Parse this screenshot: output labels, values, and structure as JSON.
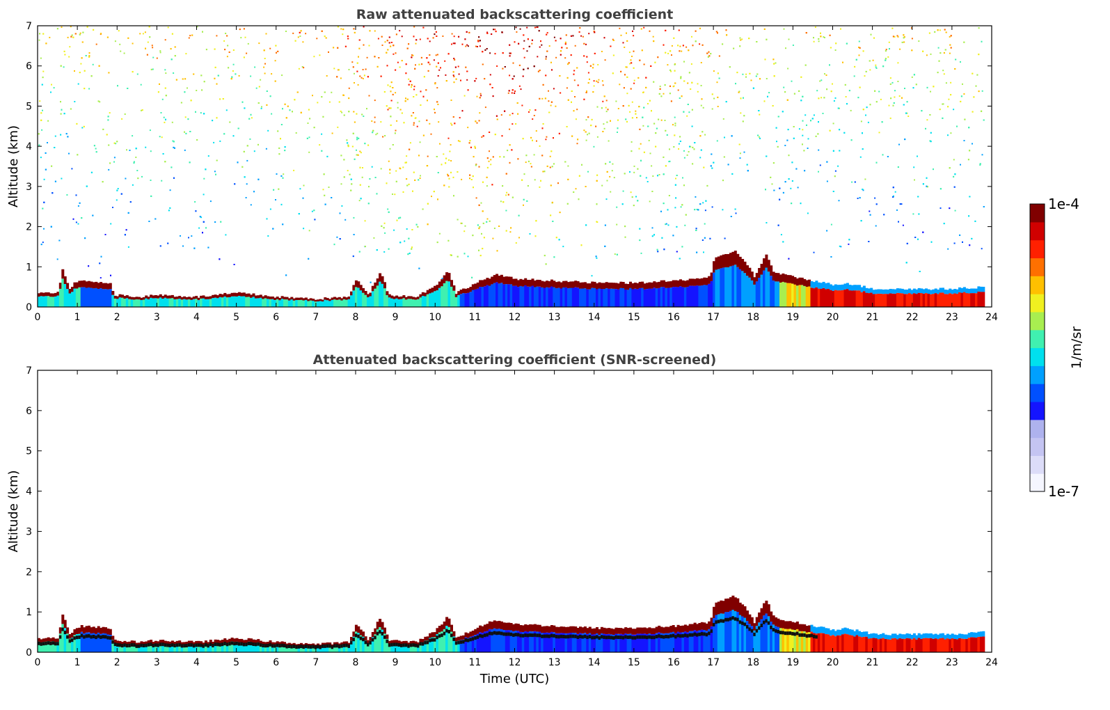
{
  "chart_data": [
    {
      "type": "heatmap",
      "title": "Raw attenuated backscattering coefficient",
      "xlabel": "",
      "ylabel": "Altitude (km)",
      "xlim": [
        0,
        24
      ],
      "ylim": [
        0,
        7
      ],
      "xticks": [
        "0",
        "1",
        "2",
        "3",
        "4",
        "5",
        "6",
        "7",
        "8",
        "9",
        "10",
        "11",
        "12",
        "13",
        "14",
        "15",
        "16",
        "17",
        "18",
        "19",
        "20",
        "21",
        "22",
        "23",
        "24"
      ],
      "yticks": [
        "0",
        "1",
        "2",
        "3",
        "4",
        "5",
        "6",
        "7"
      ],
      "noise": true,
      "layer_top_km": [
        [
          0,
          0.35
        ],
        [
          0.5,
          0.35
        ],
        [
          0.6,
          0.95
        ],
        [
          0.8,
          0.4
        ],
        [
          0.9,
          0.6
        ],
        [
          1.1,
          0.65
        ],
        [
          1.8,
          0.6
        ],
        [
          1.9,
          0.3
        ],
        [
          2.5,
          0.25
        ],
        [
          3,
          0.3
        ],
        [
          4,
          0.25
        ],
        [
          5,
          0.35
        ],
        [
          6,
          0.25
        ],
        [
          7,
          0.2
        ],
        [
          7.8,
          0.25
        ],
        [
          8,
          0.7
        ],
        [
          8.3,
          0.3
        ],
        [
          8.6,
          0.9
        ],
        [
          8.8,
          0.3
        ],
        [
          9.5,
          0.25
        ],
        [
          10,
          0.55
        ],
        [
          10.3,
          0.9
        ],
        [
          10.5,
          0.35
        ],
        [
          11,
          0.6
        ],
        [
          11.5,
          0.8
        ],
        [
          12,
          0.7
        ],
        [
          13,
          0.65
        ],
        [
          14,
          0.6
        ],
        [
          15,
          0.6
        ],
        [
          16,
          0.65
        ],
        [
          16.9,
          0.75
        ],
        [
          17,
          1.2
        ],
        [
          17.5,
          1.4
        ],
        [
          17.8,
          1.1
        ],
        [
          18,
          0.75
        ],
        [
          18.3,
          1.3
        ],
        [
          18.5,
          0.85
        ],
        [
          19,
          0.75
        ],
        [
          19.5,
          0.65
        ],
        [
          20,
          0.55
        ],
        [
          20.3,
          0.6
        ],
        [
          21,
          0.45
        ],
        [
          22,
          0.45
        ],
        [
          23,
          0.45
        ],
        [
          23.8,
          0.5
        ]
      ],
      "colorbar": {
        "label": "1/m/sr",
        "min_label": "1e-7",
        "max_label": "1e-4",
        "colors": [
          "#f5f6ff",
          "#dcdcf8",
          "#c4c4f2",
          "#aeb2ee",
          "#1414ff",
          "#0050ff",
          "#00a0ff",
          "#00e0ee",
          "#40f0b0",
          "#a8ee50",
          "#f0f020",
          "#ffc000",
          "#ff7000",
          "#ff2000",
          "#d00000",
          "#800000"
        ]
      }
    },
    {
      "type": "heatmap",
      "title": "Attenuated backscattering coefficient (SNR-screened)",
      "xlabel": "Time (UTC)",
      "ylabel": "Altitude (km)",
      "xlim": [
        0,
        24
      ],
      "ylim": [
        0,
        7
      ],
      "xticks": [
        "0",
        "1",
        "2",
        "3",
        "4",
        "5",
        "6",
        "7",
        "8",
        "9",
        "10",
        "11",
        "12",
        "13",
        "14",
        "15",
        "16",
        "17",
        "18",
        "19",
        "20",
        "21",
        "22",
        "23",
        "24"
      ],
      "yticks": [
        "0",
        "1",
        "2",
        "3",
        "4",
        "5",
        "6",
        "7"
      ],
      "noise": false,
      "layer_top_km": [
        [
          0,
          0.35
        ],
        [
          0.5,
          0.35
        ],
        [
          0.6,
          0.95
        ],
        [
          0.8,
          0.4
        ],
        [
          0.9,
          0.6
        ],
        [
          1.1,
          0.65
        ],
        [
          1.8,
          0.6
        ],
        [
          1.9,
          0.3
        ],
        [
          2.5,
          0.25
        ],
        [
          3,
          0.3
        ],
        [
          4,
          0.25
        ],
        [
          5,
          0.35
        ],
        [
          6,
          0.25
        ],
        [
          7,
          0.2
        ],
        [
          7.8,
          0.25
        ],
        [
          8,
          0.7
        ],
        [
          8.3,
          0.3
        ],
        [
          8.6,
          0.9
        ],
        [
          8.8,
          0.3
        ],
        [
          9.5,
          0.25
        ],
        [
          10,
          0.55
        ],
        [
          10.3,
          0.9
        ],
        [
          10.5,
          0.35
        ],
        [
          11,
          0.6
        ],
        [
          11.5,
          0.8
        ],
        [
          12,
          0.7
        ],
        [
          13,
          0.65
        ],
        [
          14,
          0.6
        ],
        [
          15,
          0.6
        ],
        [
          16,
          0.65
        ],
        [
          16.9,
          0.75
        ],
        [
          17,
          1.2
        ],
        [
          17.5,
          1.4
        ],
        [
          17.8,
          1.1
        ],
        [
          18,
          0.75
        ],
        [
          18.3,
          1.3
        ],
        [
          18.5,
          0.85
        ],
        [
          19,
          0.75
        ],
        [
          19.5,
          0.65
        ],
        [
          20,
          0.55
        ],
        [
          20.3,
          0.6
        ],
        [
          21,
          0.45
        ],
        [
          22,
          0.45
        ],
        [
          23,
          0.45
        ],
        [
          23.8,
          0.5
        ]
      ]
    }
  ]
}
